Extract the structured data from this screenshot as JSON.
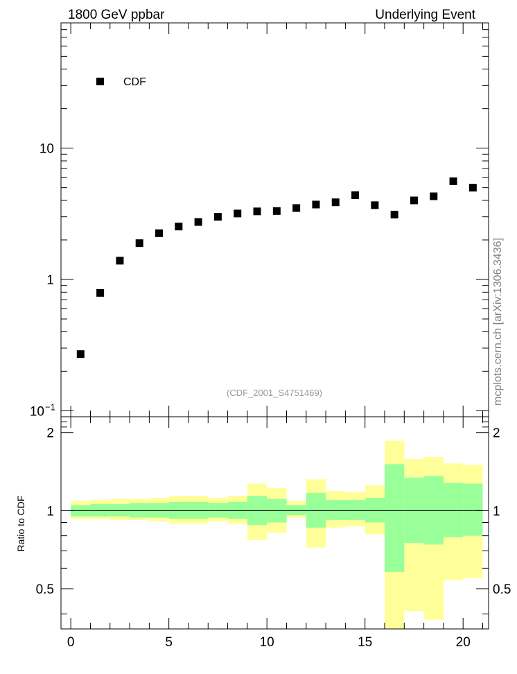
{
  "header": {
    "left_title": "1800 GeV ppbar",
    "right_title": "Underlying Event"
  },
  "side_label": "mcplots.cern.ch [arXiv:1306.3436]",
  "analysis_tag": "(CDF_2001_S4751469)",
  "chart_data": [
    {
      "type": "scatter",
      "panel": "main",
      "yscale": "log",
      "ylim": [
        0.09,
        90
      ],
      "xlim": [
        -0.5,
        21.3
      ],
      "yticks": [
        {
          "value": 0.1,
          "label": "10",
          "exp": "−1"
        },
        {
          "value": 1,
          "label": "1",
          "exp": ""
        },
        {
          "value": 10,
          "label": "10",
          "exp": ""
        }
      ],
      "legend": {
        "label": "CDF",
        "position": "top-left",
        "color": "#000000"
      },
      "series": [
        {
          "name": "CDF",
          "x": [
            0.5,
            1.5,
            2.5,
            3.5,
            4.5,
            5.5,
            6.5,
            7.5,
            8.5,
            9.5,
            10.5,
            11.5,
            12.5,
            13.5,
            14.5,
            15.5,
            16.5,
            17.5,
            18.5,
            19.5,
            20.5
          ],
          "y": [
            0.27,
            0.79,
            1.39,
            1.89,
            2.25,
            2.53,
            2.74,
            3.0,
            3.18,
            3.3,
            3.32,
            3.5,
            3.72,
            3.87,
            4.38,
            3.68,
            3.12,
            4.0,
            4.3,
            5.6,
            5.0
          ]
        }
      ]
    },
    {
      "type": "area",
      "panel": "ratio",
      "ylabel": "Ratio to CDF",
      "ylim": [
        0.35,
        2.3
      ],
      "xlim": [
        -0.5,
        21.3
      ],
      "yticks": [
        0.5,
        1,
        2
      ],
      "xticks": [
        0,
        5,
        10,
        15,
        20
      ],
      "reference_line": 1,
      "bins": [
        [
          0,
          1
        ],
        [
          1,
          2
        ],
        [
          2,
          3
        ],
        [
          3,
          4
        ],
        [
          4,
          5
        ],
        [
          5,
          6
        ],
        [
          6,
          7
        ],
        [
          7,
          8
        ],
        [
          8,
          9
        ],
        [
          9,
          10
        ],
        [
          10,
          11
        ],
        [
          11,
          12
        ],
        [
          12,
          13
        ],
        [
          13,
          14
        ],
        [
          14,
          15
        ],
        [
          15,
          16
        ],
        [
          16,
          17
        ],
        [
          17,
          18
        ],
        [
          18,
          19
        ],
        [
          19,
          20
        ],
        [
          20,
          21
        ]
      ],
      "bands": [
        {
          "name": "total",
          "color": "#ffff99",
          "low": [
            0.93,
            0.93,
            0.92,
            0.92,
            0.91,
            0.89,
            0.89,
            0.91,
            0.89,
            0.77,
            0.82,
            0.94,
            0.72,
            0.86,
            0.87,
            0.81,
            0.32,
            0.41,
            0.38,
            0.54,
            0.55
          ],
          "high": [
            1.09,
            1.1,
            1.11,
            1.11,
            1.12,
            1.14,
            1.14,
            1.12,
            1.14,
            1.27,
            1.22,
            1.09,
            1.32,
            1.19,
            1.18,
            1.25,
            1.86,
            1.58,
            1.61,
            1.52,
            1.5
          ]
        },
        {
          "name": "stat",
          "color": "#99ff99",
          "low": [
            0.95,
            0.95,
            0.95,
            0.94,
            0.94,
            0.93,
            0.93,
            0.94,
            0.93,
            0.88,
            0.9,
            0.96,
            0.86,
            0.92,
            0.92,
            0.9,
            0.58,
            0.75,
            0.74,
            0.79,
            0.8
          ],
          "high": [
            1.05,
            1.06,
            1.06,
            1.07,
            1.07,
            1.08,
            1.08,
            1.07,
            1.08,
            1.14,
            1.11,
            1.05,
            1.17,
            1.1,
            1.1,
            1.12,
            1.51,
            1.34,
            1.36,
            1.28,
            1.27
          ]
        }
      ]
    }
  ]
}
